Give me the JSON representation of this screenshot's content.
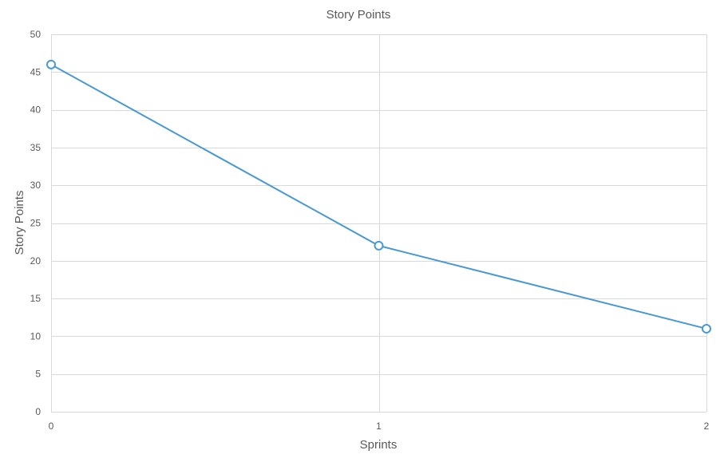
{
  "chart_data": {
    "type": "line",
    "title": "Story Points",
    "xlabel": "Sprints",
    "ylabel": "Story Points",
    "x": [
      0,
      1,
      2
    ],
    "x_ticks": [
      "0",
      "1",
      "2"
    ],
    "y_ticks": [
      "0",
      "5",
      "10",
      "15",
      "20",
      "25",
      "30",
      "35",
      "40",
      "45",
      "50"
    ],
    "ylim": [
      0,
      50
    ],
    "xlim": [
      0,
      2
    ],
    "grid": true,
    "legend": "none",
    "series": [
      {
        "values": [
          46,
          22,
          11
        ],
        "color": "#4a98d3",
        "marker": "hollow-circle"
      }
    ]
  }
}
